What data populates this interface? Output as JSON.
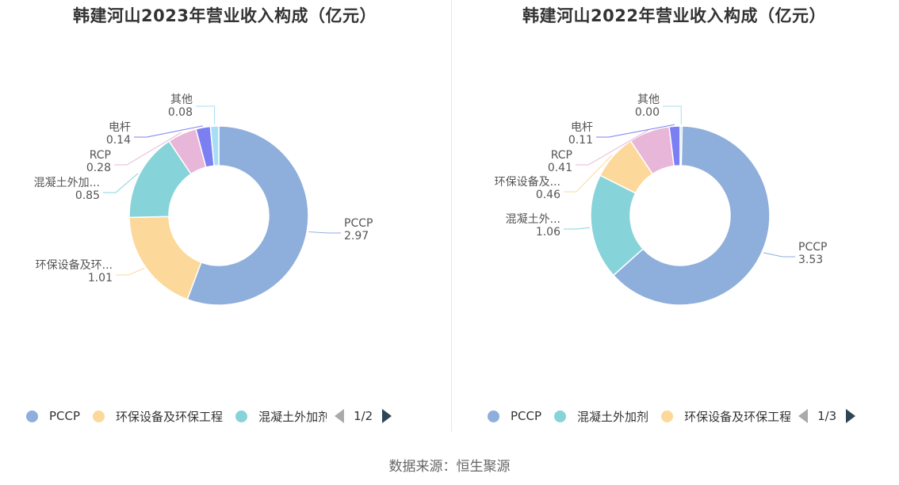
{
  "source": "数据来源：恒生聚源",
  "charts": [
    {
      "title": "韩建河山2023年营业收入构成（亿元）",
      "legend": {
        "items": [
          "PCCP",
          "环保设备及环保工程",
          "混凝土外加剂"
        ],
        "page": "1/2"
      },
      "chart_data": {
        "type": "pie",
        "slices": [
          {
            "name": "PCCP",
            "label": "PCCP",
            "value": 2.97,
            "display": "2.97",
            "color": "#8eaedb"
          },
          {
            "name": "环保设备及环保工程",
            "label": "环保设备及环...",
            "value": 1.01,
            "display": "1.01",
            "color": "#fcd89a"
          },
          {
            "name": "混凝土外加剂",
            "label": "混凝土外加...",
            "value": 0.85,
            "display": "0.85",
            "color": "#86d4d9"
          },
          {
            "name": "RCP",
            "label": "RCP",
            "value": 0.28,
            "display": "0.28",
            "color": "#e8b6d8"
          },
          {
            "name": "电杆",
            "label": "电杆",
            "value": 0.14,
            "display": "0.14",
            "color": "#7b7ff2"
          },
          {
            "name": "其他",
            "label": "其他",
            "value": 0.08,
            "display": "0.08",
            "color": "#a8def5"
          }
        ]
      }
    },
    {
      "title": "韩建河山2022年营业收入构成（亿元）",
      "legend": {
        "items": [
          "PCCP",
          "混凝土外加剂",
          "环保设备及环保工程"
        ],
        "page": "1/3"
      },
      "chart_data": {
        "type": "pie",
        "slices": [
          {
            "name": "PCCP",
            "label": "PCCP",
            "value": 3.53,
            "display": "3.53",
            "color": "#8eaedb"
          },
          {
            "name": "混凝土外加剂",
            "label": "混凝土外...",
            "value": 1.06,
            "display": "1.06",
            "color": "#86d4d9"
          },
          {
            "name": "环保设备及环保工程",
            "label": "环保设备及...",
            "value": 0.46,
            "display": "0.46",
            "color": "#fcd89a"
          },
          {
            "name": "RCP",
            "label": "RCP",
            "value": 0.41,
            "display": "0.41",
            "color": "#e8b6d8"
          },
          {
            "name": "电杆",
            "label": "电杆",
            "value": 0.11,
            "display": "0.11",
            "color": "#7b7ff2"
          },
          {
            "name": "其他",
            "label": "其他",
            "value": 0.0,
            "display": "0.00",
            "color": "#a8def5"
          }
        ]
      }
    }
  ]
}
